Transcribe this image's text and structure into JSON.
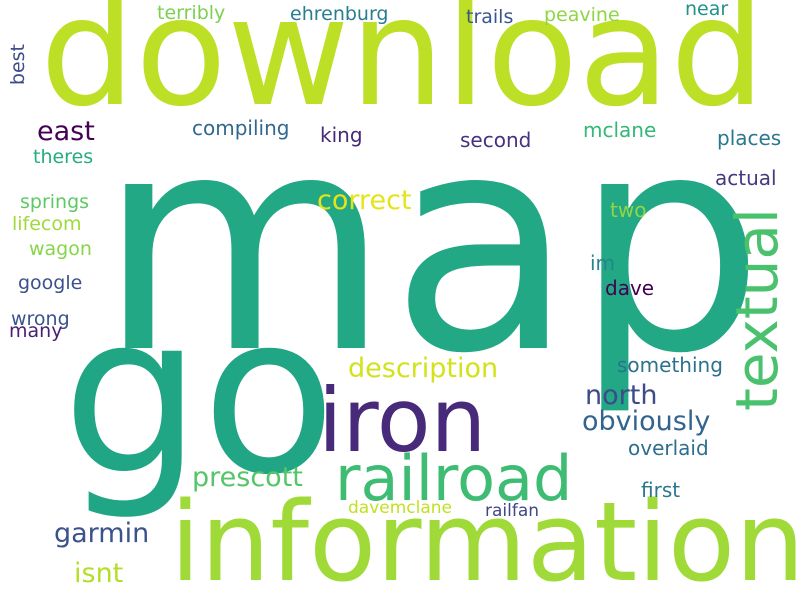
{
  "words": [
    {
      "text": "map",
      "color": "#22a884"
    },
    {
      "text": "download",
      "color": "#bddf26"
    },
    {
      "text": "go",
      "color": "#21a685"
    },
    {
      "text": "information",
      "color": "#a0da39"
    },
    {
      "text": "iron",
      "color": "#472a7a"
    },
    {
      "text": "railroad",
      "color": "#3fbc73"
    },
    {
      "text": "textual",
      "color": "#4ac16d"
    },
    {
      "text": "description",
      "color": "#d2e21b"
    },
    {
      "text": "obviously",
      "color": "#32648e"
    },
    {
      "text": "north",
      "color": "#3e4a89"
    },
    {
      "text": "prescott",
      "color": "#54c568"
    },
    {
      "text": "garmin",
      "color": "#3b528b"
    },
    {
      "text": "correct",
      "color": "#e5e419"
    },
    {
      "text": "east",
      "color": "#440154"
    },
    {
      "text": "isnt",
      "color": "#b5de2b"
    },
    {
      "text": "compiling",
      "color": "#31688e"
    },
    {
      "text": "king",
      "color": "#482878"
    },
    {
      "text": "second",
      "color": "#46327e"
    },
    {
      "text": "mclane",
      "color": "#35b779"
    },
    {
      "text": "places",
      "color": "#2a788e"
    },
    {
      "text": "actual",
      "color": "#443983"
    },
    {
      "text": "two",
      "color": "#90d743"
    },
    {
      "text": "im",
      "color": "#25858e"
    },
    {
      "text": "dave",
      "color": "#440154"
    },
    {
      "text": "something",
      "color": "#2c728e"
    },
    {
      "text": "overlaid",
      "color": "#2e6e8e"
    },
    {
      "text": "first",
      "color": "#2a778e"
    },
    {
      "text": "davemclane",
      "color": "#c2df23"
    },
    {
      "text": "railfan",
      "color": "#404688"
    },
    {
      "text": "terribly",
      "color": "#7ad151"
    },
    {
      "text": "ehrenburg",
      "color": "#277f8e"
    },
    {
      "text": "trails",
      "color": "#39568c"
    },
    {
      "text": "peavine",
      "color": "#8ed645"
    },
    {
      "text": "near",
      "color": "#21918c"
    },
    {
      "text": "best",
      "color": "#3e4c8a"
    },
    {
      "text": "theres",
      "color": "#25ac82"
    },
    {
      "text": "springs",
      "color": "#5ec962"
    },
    {
      "text": "lifecom",
      "color": "#9fda3a"
    },
    {
      "text": "wagon",
      "color": "#86d549"
    },
    {
      "text": "google",
      "color": "#3b518b"
    },
    {
      "text": "wrong",
      "color": "#3a548c"
    },
    {
      "text": "many",
      "color": "#481f70"
    }
  ]
}
